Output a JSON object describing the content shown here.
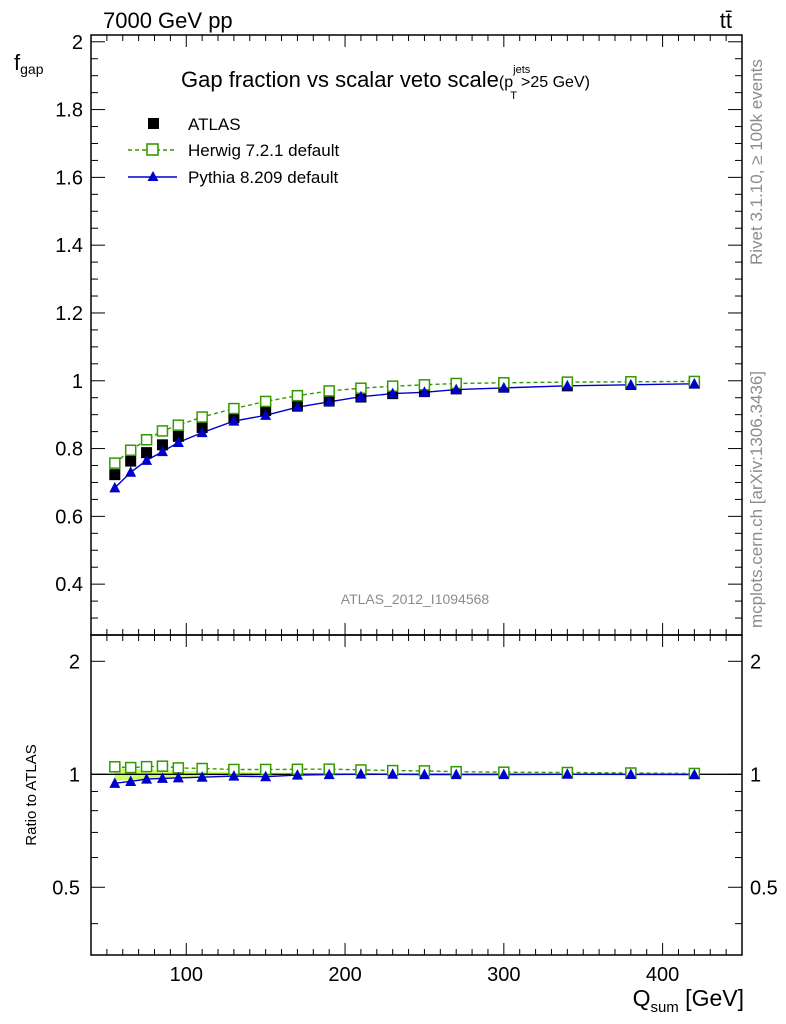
{
  "header": {
    "energy_label": "7000 GeV pp",
    "process_label": "tt̄",
    "rivet_label": "Rivet 3.1.10, ≥ 100k events",
    "mcplots_label": "mcplots.cern.ch [arXiv:1306.3436]",
    "analysis_label": "ATLAS_2012_I1094568"
  },
  "chart_data": [
    {
      "type": "line",
      "title_main": "Gap fraction vs scalar veto scale",
      "title_paren_open": "(p",
      "title_sup": "jets",
      "title_sub": "T",
      "title_paren_close": ">25 GeV)",
      "ylabel_main": "f",
      "ylabel_sub": "gap",
      "xlim": [
        40,
        450
      ],
      "ylim": [
        0.25,
        2.02
      ],
      "yticks": [
        0.4,
        0.6,
        0.8,
        1,
        1.2,
        1.4,
        1.6,
        1.8,
        2
      ],
      "ytick_labels": [
        "0.4",
        "0.6",
        "0.8",
        "1",
        "1.2",
        "1.4",
        "1.6",
        "1.8",
        "2"
      ],
      "x": [
        55,
        65,
        75,
        85,
        95,
        110,
        130,
        150,
        170,
        190,
        210,
        230,
        250,
        270,
        300,
        340,
        380,
        420
      ],
      "series": [
        {
          "name": "ATLAS",
          "color": "#000000",
          "values": [
            0.723,
            0.763,
            0.788,
            0.811,
            0.836,
            0.862,
            0.891,
            0.912,
            0.927,
            0.94,
            0.952,
            0.962,
            0.968,
            0.976,
            0.981,
            0.985,
            0.989,
            0.993
          ]
        },
        {
          "name": "Herwig 7.2.1 default",
          "color": "#339900",
          "values": [
            0.757,
            0.795,
            0.826,
            0.852,
            0.869,
            0.893,
            0.918,
            0.939,
            0.956,
            0.97,
            0.978,
            0.984,
            0.988,
            0.992,
            0.994,
            0.996,
            0.997,
            0.998
          ]
        },
        {
          "name": "Pythia 8.209 default",
          "color": "#0000cc",
          "values": [
            0.684,
            0.73,
            0.765,
            0.791,
            0.818,
            0.847,
            0.881,
            0.898,
            0.922,
            0.938,
            0.953,
            0.962,
            0.966,
            0.974,
            0.979,
            0.985,
            0.988,
            0.991
          ]
        }
      ]
    },
    {
      "type": "line",
      "ylabel": "Ratio to ATLAS",
      "xlabel_main": "Q",
      "xlabel_sub": "sum",
      "xlabel_unit": " [GeV]",
      "xlim": [
        40,
        450
      ],
      "xticks": [
        100,
        200,
        300,
        400
      ],
      "xtick_labels": [
        "100",
        "200",
        "300",
        "400"
      ],
      "ylim": [
        0.33,
        2.35
      ],
      "yscale": "log",
      "yticks": [
        0.5,
        1,
        2
      ],
      "ytick_labels": [
        "0.5",
        "1",
        "2"
      ],
      "band_color": "#ccff66",
      "x": [
        55,
        65,
        75,
        85,
        95,
        110,
        130,
        150,
        170,
        190,
        210,
        230,
        250,
        270,
        300,
        340,
        380,
        420
      ],
      "series": [
        {
          "name": "Herwig 7.2.1 default",
          "color": "#339900",
          "values": [
            1.047,
            1.042,
            1.048,
            1.051,
            1.04,
            1.036,
            1.03,
            1.03,
            1.031,
            1.032,
            1.027,
            1.023,
            1.021,
            1.016,
            1.013,
            1.011,
            1.008,
            1.005
          ]
        },
        {
          "name": "Pythia 8.209 default",
          "color": "#0000cc",
          "values": [
            0.946,
            0.957,
            0.971,
            0.975,
            0.978,
            0.982,
            0.989,
            0.985,
            0.995,
            0.998,
            1.001,
            1.0,
            0.998,
            0.998,
            0.998,
            1.0,
            0.999,
            0.998
          ]
        }
      ]
    }
  ]
}
